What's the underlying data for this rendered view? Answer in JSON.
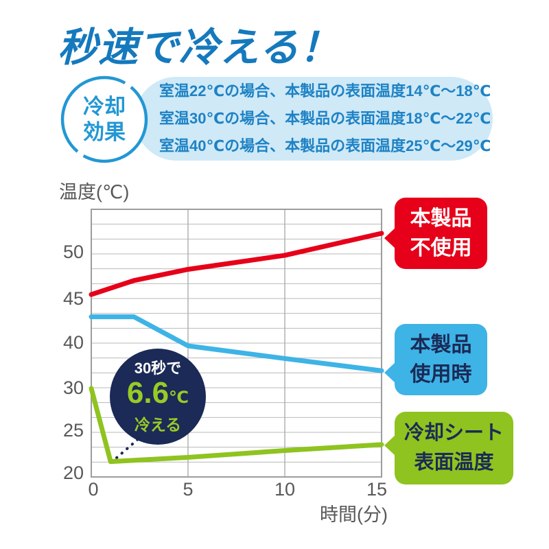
{
  "title": "秒速で冷える！",
  "badge": {
    "line1": "冷却",
    "line2": "効果"
  },
  "info_box": {
    "lines": [
      "室温22℃の場合、本製品の表面温度14℃〜18℃",
      "室温30℃の場合、本製品の表面温度18℃〜22℃",
      "室温40℃の場合、本製品の表面温度25℃〜29℃"
    ]
  },
  "colors": {
    "title_blue": "#1579bd",
    "badge_blue": "#2397d4",
    "info_bg": "#cfe9f7",
    "info_text": "#1e82c4",
    "axis_gray": "#595757",
    "grid_gray": "#b9b9ba",
    "red": "#e60019",
    "sky_blue": "#3eb3e6",
    "green": "#8fc31f",
    "navy": "#1b2a56",
    "annotation_green": "#97cb26"
  },
  "chart_data": {
    "type": "line",
    "ylabel": "温度(℃)",
    "xlabel": "時間(分)",
    "x_ticks": [
      "0",
      "5",
      "10",
      "15"
    ],
    "y_ticks": [
      "50",
      "45",
      "40",
      "30",
      "25",
      "20"
    ],
    "x_range": [
      0,
      15
    ],
    "grid": true,
    "legend_position": "right-callouts",
    "series": [
      {
        "name": "本製品不使用",
        "color": "#e60019",
        "points": [
          [
            0,
            45.5
          ],
          [
            2.2,
            47
          ],
          [
            5,
            48.2
          ],
          [
            10,
            49.7
          ],
          [
            15,
            52
          ]
        ]
      },
      {
        "name": "本製品使用時",
        "color": "#3eb3e6",
        "points": [
          [
            0,
            43
          ],
          [
            2.2,
            43
          ],
          [
            5,
            39.4
          ],
          [
            10,
            36.6
          ],
          [
            15,
            33.9
          ]
        ]
      },
      {
        "name": "冷却シート表面温度",
        "color": "#8fc31f",
        "points": [
          [
            0,
            30
          ],
          [
            1,
            21.4
          ],
          [
            5,
            21.9
          ],
          [
            10,
            22.7
          ],
          [
            15,
            23.4
          ]
        ]
      }
    ],
    "callouts": [
      {
        "lines": [
          "本製品",
          "不使用"
        ],
        "bg": "#e60019",
        "text_color": "#ffffff"
      },
      {
        "lines": [
          "本製品",
          "使用時"
        ],
        "bg": "#3eb3e6",
        "text_color": "#1b2a56"
      },
      {
        "lines": [
          "冷却シート",
          "表面温度"
        ],
        "bg": "#8fc31f",
        "text_color": "#1b2a56"
      }
    ],
    "annotation": {
      "line1": "30秒で",
      "value": "6.6",
      "unit": "℃",
      "line2": "冷える",
      "bg": "#1b2a56",
      "accent": "#97cb26"
    }
  }
}
